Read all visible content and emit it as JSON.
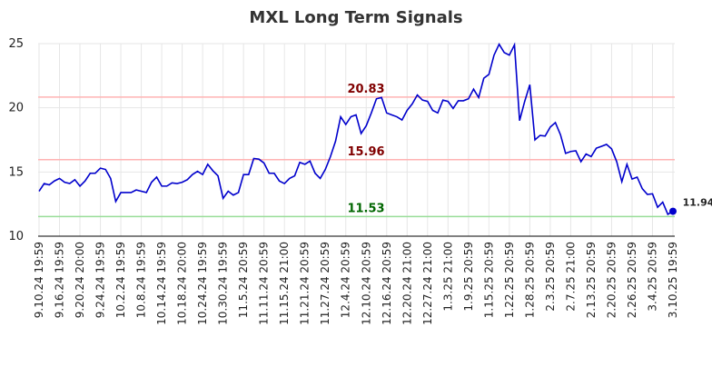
{
  "chart_data": {
    "type": "line",
    "title": "MXL Long Term Signals",
    "categories": [
      "9.10.24 19:59",
      null,
      null,
      null,
      "9.16.24 19:59",
      null,
      null,
      null,
      "9.20.24 20:00",
      null,
      null,
      null,
      "9.24.24 19:59",
      null,
      null,
      null,
      "10.2.24 19:59",
      null,
      null,
      null,
      "10.8.24 19:59",
      null,
      null,
      null,
      "10.14.24 19:59",
      null,
      null,
      null,
      "10.18.24 20:00",
      null,
      null,
      null,
      "10.24.24 19:59",
      null,
      null,
      null,
      "10.30.24 19:59",
      null,
      null,
      null,
      "11.5.24 20:59",
      null,
      null,
      null,
      "11.11.24 20:59",
      null,
      null,
      null,
      "11.15.24 21:00",
      null,
      null,
      null,
      "11.21.24 20:59",
      null,
      null,
      null,
      "11.27.24 20:59",
      null,
      null,
      null,
      "12.4.24 20:59",
      null,
      null,
      null,
      "12.10.24 20:59",
      null,
      null,
      null,
      "12.16.24 20:59",
      null,
      null,
      null,
      "12.20.24 21:00",
      null,
      null,
      null,
      "12.27.24 21:00",
      null,
      null,
      null,
      "1.3.25 21:00",
      null,
      null,
      null,
      "1.9.25 20:59",
      null,
      null,
      null,
      "1.15.25 20:59",
      null,
      null,
      null,
      "1.22.25 20:59",
      null,
      null,
      null,
      "1.28.25 20:59",
      null,
      null,
      null,
      "2.3.25 20:59",
      null,
      null,
      null,
      "2.7.25 21:00",
      null,
      null,
      null,
      "2.13.25 20:59",
      null,
      null,
      null,
      "2.20.25 20:59",
      null,
      null,
      null,
      "2.26.25 20:59",
      null,
      null,
      null,
      "3.4.25 20:59",
      null,
      null,
      null,
      "3.10.25 19:59"
    ],
    "values": [
      13.5,
      14.1,
      14.0,
      14.3,
      14.5,
      14.2,
      14.1,
      14.4,
      13.9,
      14.3,
      14.9,
      14.9,
      15.3,
      15.2,
      14.5,
      12.7,
      13.4,
      13.4,
      13.4,
      13.6,
      13.5,
      13.4,
      14.2,
      14.6,
      13.9,
      13.9,
      14.15,
      14.1,
      14.2,
      14.4,
      14.8,
      15.05,
      14.8,
      15.6,
      15.1,
      14.7,
      12.95,
      13.5,
      13.2,
      13.4,
      14.8,
      14.8,
      16.05,
      16.0,
      15.7,
      14.9,
      14.9,
      14.3,
      14.1,
      14.5,
      14.7,
      15.75,
      15.6,
      15.85,
      14.9,
      14.5,
      15.2,
      16.2,
      17.4,
      19.3,
      18.7,
      19.3,
      19.45,
      18.0,
      18.6,
      19.6,
      20.7,
      20.8,
      19.6,
      19.45,
      19.3,
      19.05,
      19.8,
      20.3,
      21.0,
      20.6,
      20.5,
      19.8,
      19.6,
      20.6,
      20.5,
      19.95,
      20.55,
      20.55,
      20.7,
      21.45,
      20.8,
      22.3,
      22.6,
      24.1,
      24.95,
      24.3,
      24.1,
      24.9,
      19.0,
      20.5,
      21.8,
      17.5,
      17.85,
      17.8,
      18.5,
      18.85,
      17.9,
      16.45,
      16.6,
      16.65,
      15.8,
      16.4,
      16.2,
      16.85,
      17.0,
      17.15,
      16.8,
      15.8,
      14.25,
      15.6,
      14.45,
      14.6,
      13.7,
      13.25,
      13.3,
      12.25,
      12.65,
      11.7,
      11.94
    ],
    "color": "#0000cc",
    "ylim": [
      10,
      25
    ],
    "yticks": [
      10,
      15,
      20,
      25
    ],
    "grid": true,
    "hlines": [
      {
        "value": 20.83,
        "color": "#ffb3b3",
        "label_color": "#800000"
      },
      {
        "value": 15.96,
        "color": "#ffb3b3",
        "label_color": "#800000"
      },
      {
        "value": 11.53,
        "color": "#99dd99",
        "label_color": "#006600"
      }
    ]
  }
}
